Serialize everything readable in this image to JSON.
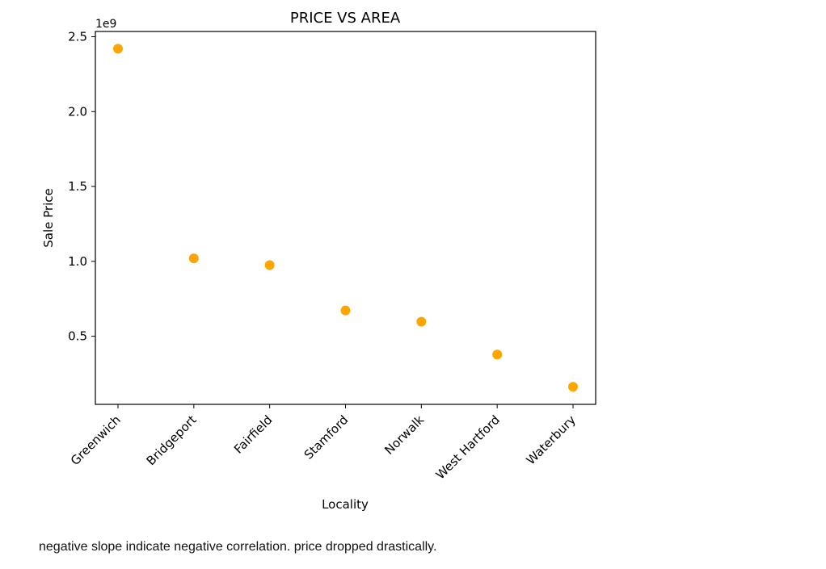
{
  "chart_data": {
    "type": "scatter",
    "title": "PRICE VS AREA",
    "xlabel": "Locality",
    "ylabel": "Sale Price",
    "y_offset_label": "1e9",
    "categories": [
      "Greenwich",
      "Bridgeport",
      "Fairfield",
      "Stamford",
      "Norwalk",
      "West Hartford",
      "Waterbury"
    ],
    "values": [
      2420000000,
      1020000000,
      975000000,
      672000000,
      597000000,
      378000000,
      162000000
    ],
    "ylim": [
      45000000,
      2535000000
    ],
    "yticks": [
      500000000,
      1000000000,
      1500000000,
      2000000000,
      2500000000
    ],
    "ytick_labels": [
      "0.5",
      "1.0",
      "1.5",
      "2.0",
      "2.5"
    ],
    "grid": false,
    "marker_color": "#FFA500"
  },
  "caption": "negative slope indicate negative correlation. price dropped drastically."
}
